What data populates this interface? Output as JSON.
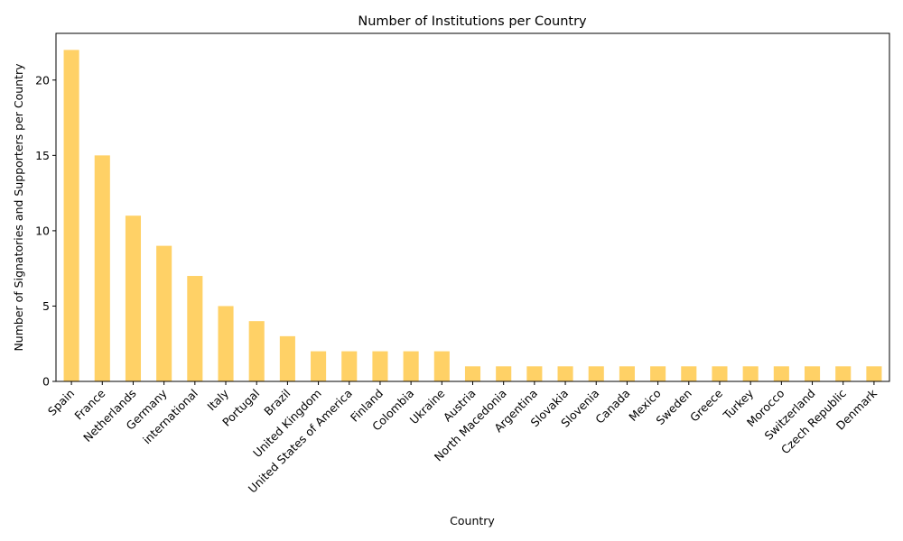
{
  "chart_data": {
    "type": "bar",
    "title": "Number of Institutions per Country",
    "xlabel": "Country",
    "ylabel": "Number of Signatories and Supporters per Country",
    "categories": [
      "Spain",
      "France",
      "Netherlands",
      "Germany",
      "international",
      "Italy",
      "Portugal",
      "Brazil",
      "United Kingdom",
      "United States of America",
      "Finland",
      "Colombia",
      "Ukraine",
      "Austria",
      "North Macedonia",
      "Argentina",
      "Slovakia",
      "Slovenia",
      "Canada",
      "Mexico",
      "Sweden",
      "Greece",
      "Turkey",
      "Morocco",
      "Switzerland",
      "Czech Republic",
      "Denmark"
    ],
    "values": [
      22,
      15,
      11,
      9,
      7,
      5,
      4,
      3,
      2,
      2,
      2,
      2,
      2,
      1,
      1,
      1,
      1,
      1,
      1,
      1,
      1,
      1,
      1,
      1,
      1,
      1,
      1
    ],
    "ylim": [
      0,
      23.1
    ],
    "yticks": [
      0,
      5,
      10,
      15,
      20
    ],
    "grid": false,
    "bar_color": "#FFD166",
    "legend": "none"
  }
}
